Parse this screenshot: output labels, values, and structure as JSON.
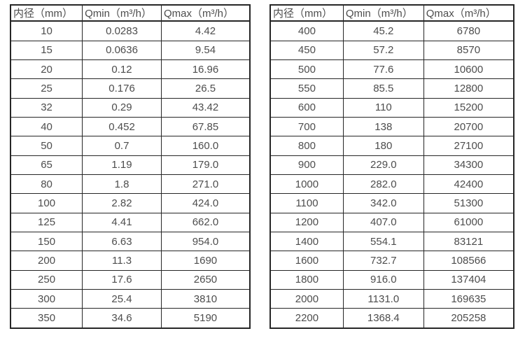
{
  "colors": {
    "border": "#262626",
    "text": "#4d4d4d",
    "background": "#ffffff"
  },
  "tables": [
    {
      "name": "flow-spec-table-small-diameters",
      "headers": [
        "内径（mm）",
        "Qmin（m³/h）",
        "Qmax（m³/h）"
      ],
      "rows": [
        [
          "10",
          "0.0283",
          "4.42"
        ],
        [
          "15",
          "0.0636",
          "9.54"
        ],
        [
          "20",
          "0.12",
          "16.96"
        ],
        [
          "25",
          "0.176",
          "26.5"
        ],
        [
          "32",
          "0.29",
          "43.42"
        ],
        [
          "40",
          "0.452",
          "67.85"
        ],
        [
          "50",
          "0.7",
          "160.0"
        ],
        [
          "65",
          "1.19",
          "179.0"
        ],
        [
          "80",
          "1.8",
          "271.0"
        ],
        [
          "100",
          "2.82",
          "424.0"
        ],
        [
          "125",
          "4.41",
          "662.0"
        ],
        [
          "150",
          "6.63",
          "954.0"
        ],
        [
          "200",
          "11.3",
          "1690"
        ],
        [
          "250",
          "17.6",
          "2650"
        ],
        [
          "300",
          "25.4",
          "3810"
        ],
        [
          "350",
          "34.6",
          "5190"
        ]
      ]
    },
    {
      "name": "flow-spec-table-large-diameters",
      "headers": [
        "内径（mm）",
        "Qmin（m³/h）",
        "Qmax（m³/h）"
      ],
      "rows": [
        [
          "400",
          "45.2",
          "6780"
        ],
        [
          "450",
          "57.2",
          "8570"
        ],
        [
          "500",
          "77.6",
          "10600"
        ],
        [
          "550",
          "85.5",
          "12800"
        ],
        [
          "600",
          "110",
          "15200"
        ],
        [
          "700",
          "138",
          "20700"
        ],
        [
          "800",
          "180",
          "27100"
        ],
        [
          "900",
          "229.0",
          "34300"
        ],
        [
          "1000",
          "282.0",
          "42400"
        ],
        [
          "1100",
          "342.0",
          "51300"
        ],
        [
          "1200",
          "407.0",
          "61000"
        ],
        [
          "1400",
          "554.1",
          "83121"
        ],
        [
          "1600",
          "732.7",
          "108566"
        ],
        [
          "1800",
          "916.0",
          "137404"
        ],
        [
          "2000",
          "1131.0",
          "169635"
        ],
        [
          "2200",
          "1368.4",
          "205258"
        ]
      ]
    }
  ]
}
